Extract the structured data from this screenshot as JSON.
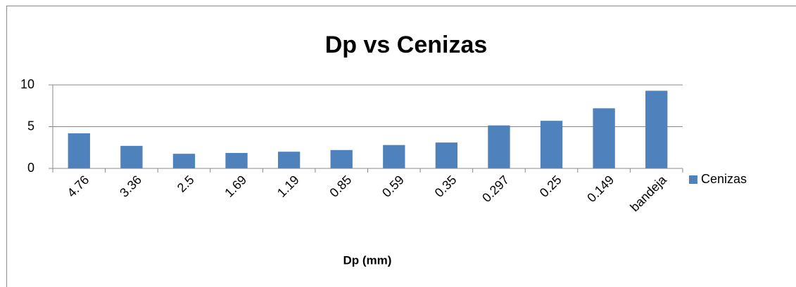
{
  "chart_data": {
    "type": "bar",
    "title": "Dp vs Cenizas",
    "x_label": "Dp (mm)",
    "categories": [
      "4.76",
      "3.36",
      "2.5",
      "1.69",
      "1.19",
      "0.85",
      "0.59",
      "0.35",
      "0.297",
      "0.25",
      "0.149",
      "bandeja"
    ],
    "series": [
      {
        "name": "Cenizas",
        "color": "#4f81bd",
        "values": [
          4.2,
          2.7,
          1.75,
          1.85,
          2.0,
          2.2,
          2.8,
          3.1,
          5.15,
          5.7,
          7.2,
          9.3
        ]
      }
    ],
    "ylim": [
      0,
      10
    ],
    "yticks": [
      0,
      5,
      10
    ],
    "grid": true,
    "legend": "right"
  }
}
